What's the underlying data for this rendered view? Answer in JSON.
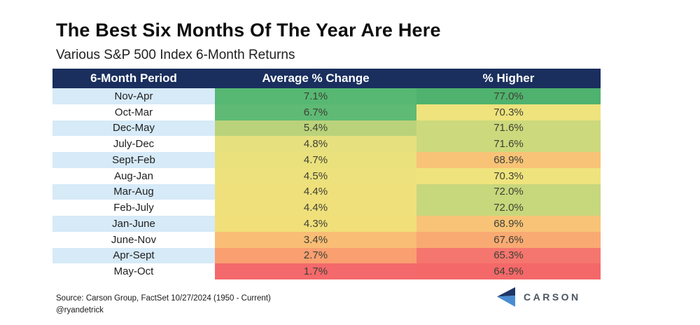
{
  "title": "The Best Six Months Of The Year Are Here",
  "subtitle": "Various S&P 500 Index 6-Month Returns",
  "footer": {
    "source_line": "Source: Carson Group, FactSet 10/27/2024 (1950 - Current)",
    "handle": "@ryandetrick"
  },
  "logo": {
    "text": "CARSON",
    "chevron_dark": "#1e3666",
    "chevron_light": "#4a8cd2"
  },
  "colors": {
    "header_bg": "#1a2f5e",
    "header_text": "#ffffff",
    "row_alt_blue": "#d6eaf8",
    "row_alt_white": "#ffffff"
  },
  "chart_data": {
    "type": "table",
    "title": "The Best Six Months Of The Year Are Here",
    "subtitle": "Various S&P 500 Index 6-Month Returns",
    "columns": [
      "6-Month Period",
      "Average % Change",
      "% Higher"
    ],
    "rows": [
      {
        "period": "Nov-Apr",
        "avg": "7.1%",
        "higher": "77.0%",
        "avg_color": "#56b873",
        "higher_color": "#4fb26e"
      },
      {
        "period": "Oct-Mar",
        "avg": "6.7%",
        "higher": "70.3%",
        "avg_color": "#5eba75",
        "higher_color": "#efe37d"
      },
      {
        "period": "Dec-May",
        "avg": "5.4%",
        "higher": "71.6%",
        "avg_color": "#bad37b",
        "higher_color": "#ccd97c"
      },
      {
        "period": "July-Dec",
        "avg": "4.8%",
        "higher": "71.6%",
        "avg_color": "#e7e07e",
        "higher_color": "#ccd97c"
      },
      {
        "period": "Sept-Feb",
        "avg": "4.7%",
        "higher": "68.9%",
        "avg_color": "#eae17d",
        "higher_color": "#f8c377"
      },
      {
        "period": "Aug-Jan",
        "avg": "4.5%",
        "higher": "70.3%",
        "avg_color": "#ece17c",
        "higher_color": "#efe37d"
      },
      {
        "period": "Mar-Aug",
        "avg": "4.4%",
        "higher": "72.0%",
        "avg_color": "#efe07b",
        "higher_color": "#c7d77c"
      },
      {
        "period": "Feb-July",
        "avg": "4.4%",
        "higher": "72.0%",
        "avg_color": "#efe07b",
        "higher_color": "#c7d77c"
      },
      {
        "period": "Jan-June",
        "avg": "4.3%",
        "higher": "68.9%",
        "avg_color": "#f1df7a",
        "higher_color": "#f8c377"
      },
      {
        "period": "June-Nov",
        "avg": "3.4%",
        "higher": "67.6%",
        "avg_color": "#f9bd75",
        "higher_color": "#f9aa73"
      },
      {
        "period": "Apr-Sept",
        "avg": "2.7%",
        "higher": "65.3%",
        "avg_color": "#f99f70",
        "higher_color": "#f5766e"
      },
      {
        "period": "May-Oct",
        "avg": "1.7%",
        "higher": "64.9%",
        "avg_color": "#f4696b",
        "higher_color": "#f4686a"
      }
    ]
  }
}
